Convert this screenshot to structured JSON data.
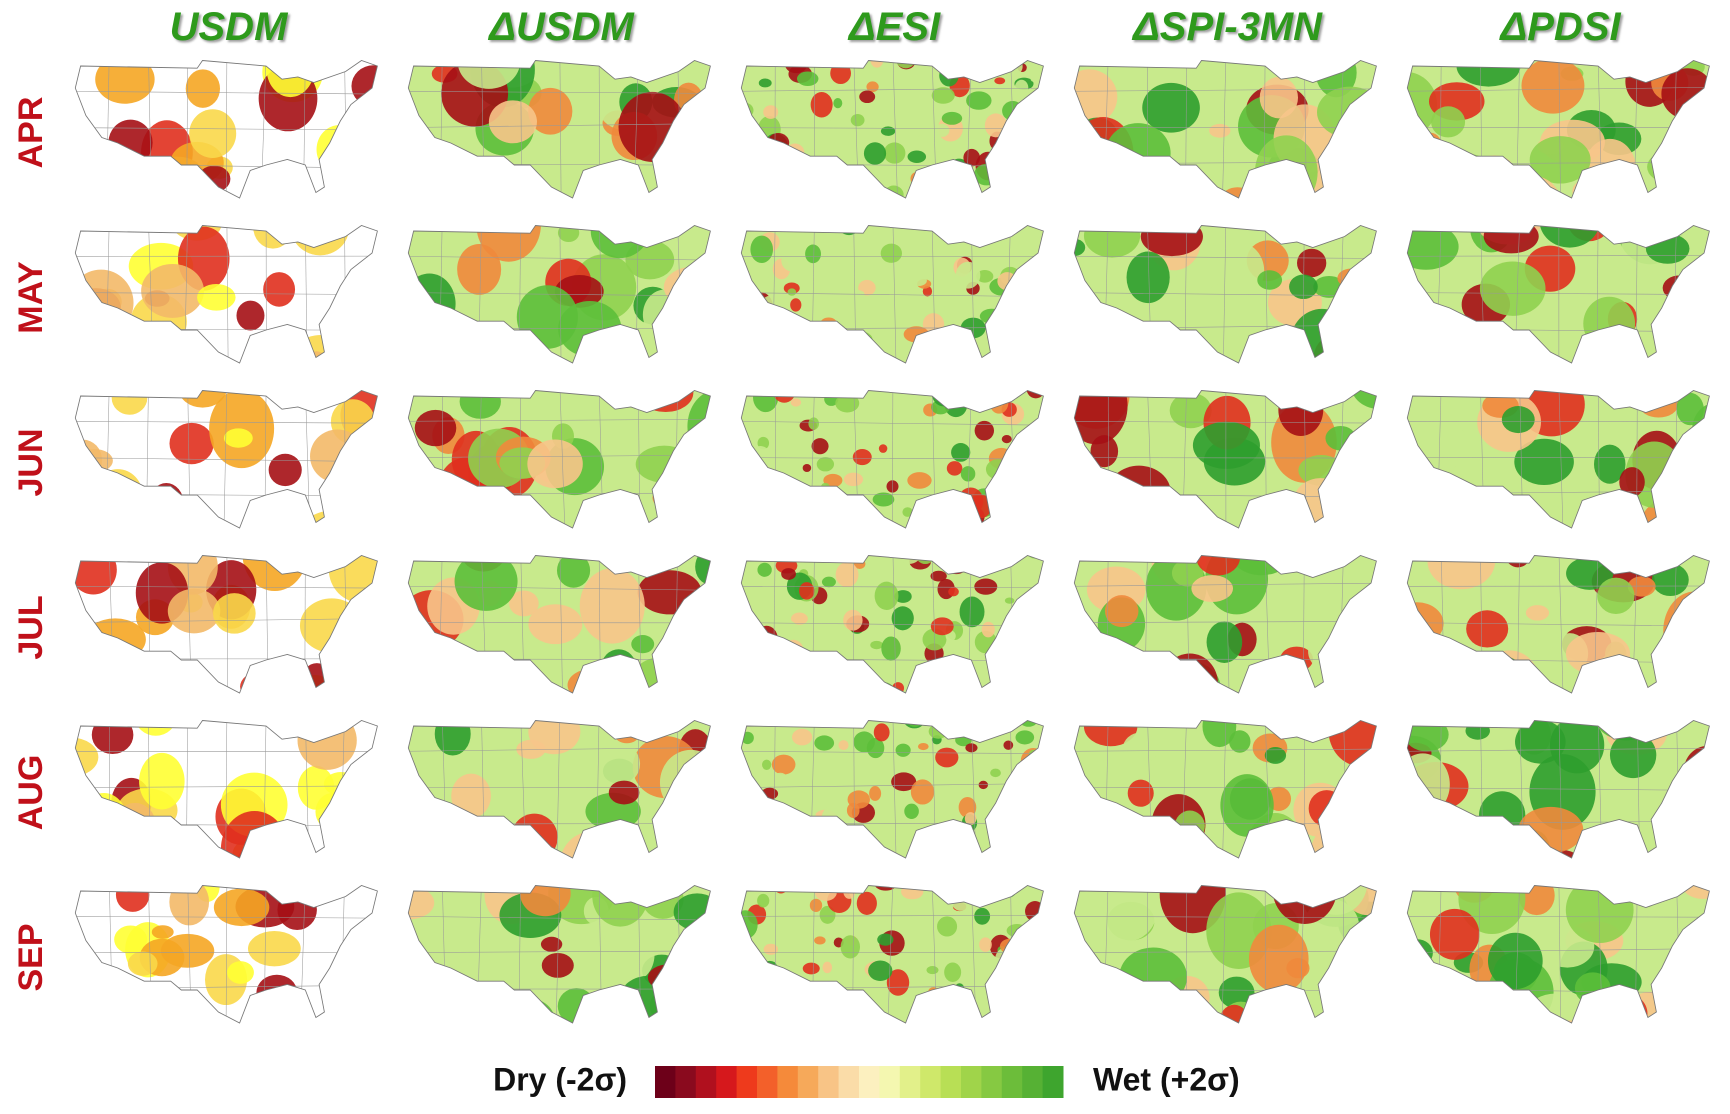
{
  "columns": [
    "USDM",
    "ΔUSDM",
    "ΔESI",
    "ΔSPI-3MN",
    "ΔPDSI"
  ],
  "rows": [
    "APR",
    "MAY",
    "JUN",
    "JUL",
    "AUG",
    "SEP"
  ],
  "colorbar": {
    "dry_label": "Dry (-2σ)",
    "wet_label": "Wet (+2σ)"
  }
}
